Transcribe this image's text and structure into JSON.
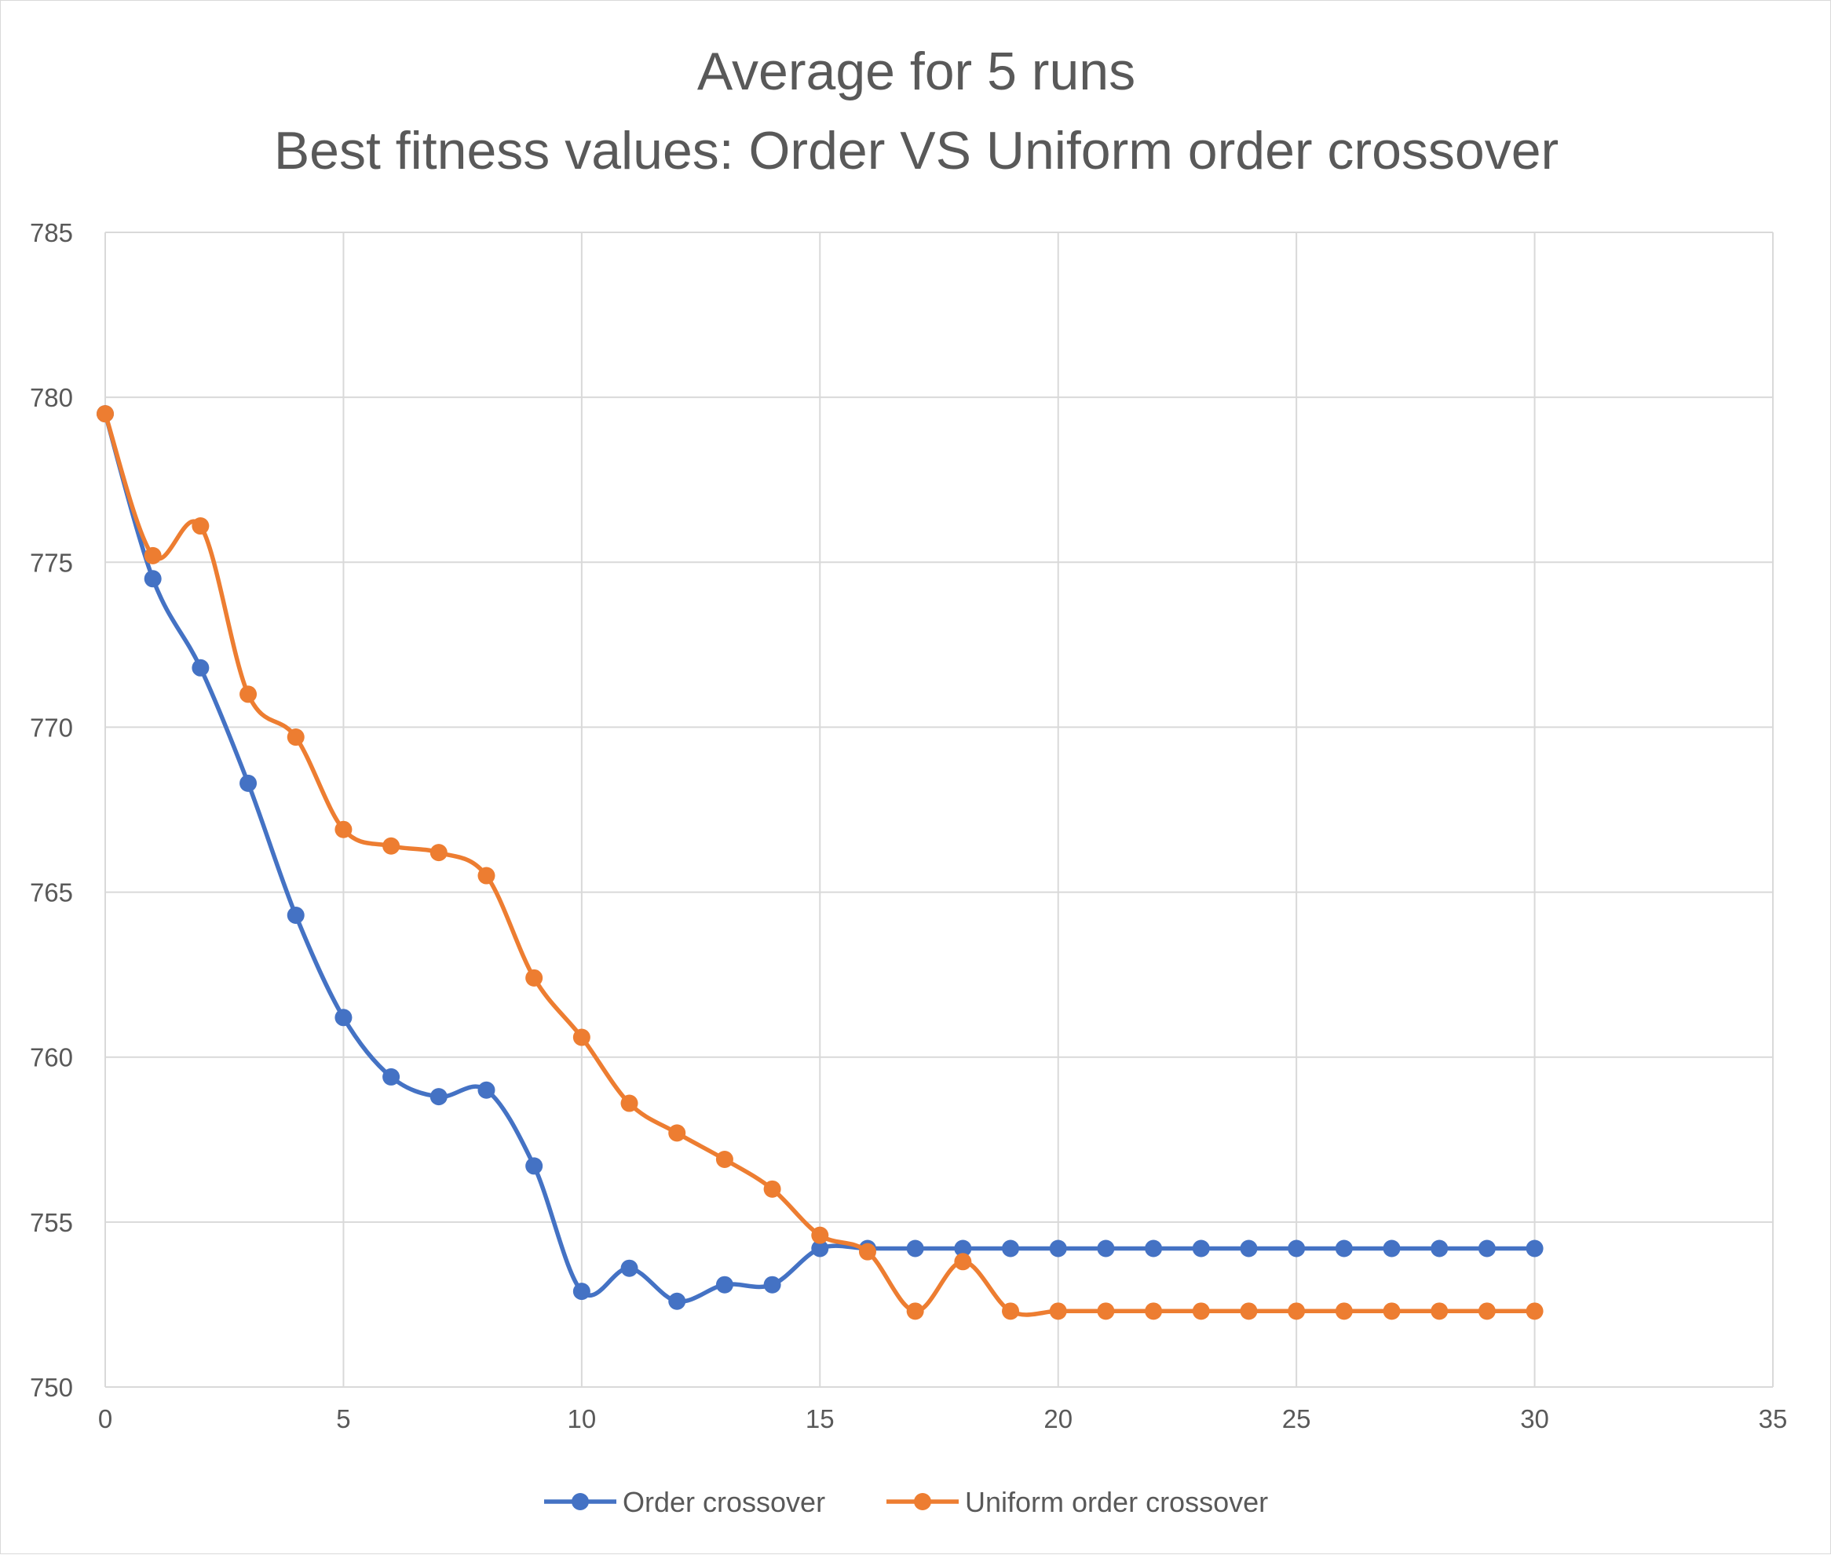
{
  "chart_data": {
    "type": "line",
    "title": [
      "Average for 5 runs",
      "Best fitness values: Order VS Uniform order crossover"
    ],
    "xlim": [
      0,
      35
    ],
    "ylim": [
      750,
      785
    ],
    "x_ticks": [
      0,
      5,
      10,
      15,
      20,
      25,
      30,
      35
    ],
    "y_ticks": [
      750,
      755,
      760,
      765,
      770,
      775,
      780,
      785
    ],
    "grid": true,
    "smooth": true,
    "legend_position": "bottom",
    "x": [
      0,
      1,
      2,
      3,
      4,
      5,
      6,
      7,
      8,
      9,
      10,
      11,
      12,
      13,
      14,
      15,
      16,
      17,
      18,
      19,
      20,
      21,
      22,
      23,
      24,
      25,
      26,
      27,
      28,
      29,
      30
    ],
    "series": [
      {
        "name": "Order crossover",
        "color": "#4472c4",
        "values": [
          779.5,
          774.5,
          771.8,
          768.3,
          764.3,
          761.2,
          759.4,
          758.8,
          759.0,
          756.7,
          752.9,
          753.6,
          752.6,
          753.1,
          753.1,
          754.2,
          754.2,
          754.2,
          754.2,
          754.2,
          754.2,
          754.2,
          754.2,
          754.2,
          754.2,
          754.2,
          754.2,
          754.2,
          754.2,
          754.2,
          754.2
        ]
      },
      {
        "name": "Uniform order crossover",
        "color": "#ed7d31",
        "values": [
          779.5,
          775.2,
          776.1,
          771.0,
          769.7,
          766.9,
          766.4,
          766.2,
          765.5,
          762.4,
          760.6,
          758.6,
          757.7,
          756.9,
          756.0,
          754.6,
          754.1,
          752.3,
          753.8,
          752.3,
          752.3,
          752.3,
          752.3,
          752.3,
          752.3,
          752.3,
          752.3,
          752.3,
          752.3,
          752.3,
          752.3
        ]
      }
    ]
  }
}
